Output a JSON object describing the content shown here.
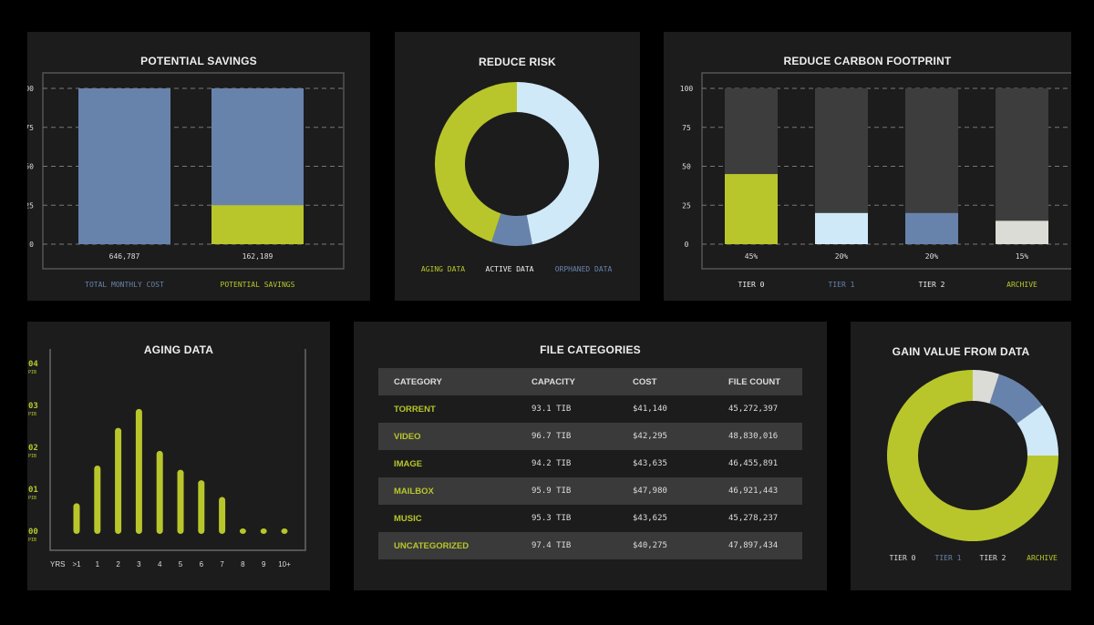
{
  "colors": {
    "green": "#b8c62b",
    "blue": "#6883ab",
    "lightblue": "#cfe9f8",
    "gray": "#3d3d3d",
    "offwhite": "#dcdcd6"
  },
  "chart_data": [
    {
      "type": "bar",
      "title": "POTENTIAL SAVINGS",
      "yticks": [
        "100",
        "75",
        "50",
        "25",
        "0"
      ],
      "ylim": [
        0,
        100
      ],
      "categories": [
        "TOTAL MONTHLY COST",
        "POTENTIAL SAVINGS"
      ],
      "totals": [
        100,
        100
      ],
      "highlight": [
        0,
        25
      ],
      "value_labels": [
        "646,787",
        "162,189"
      ]
    },
    {
      "type": "pie",
      "title": "REDUCE RISK",
      "labels": [
        "AGING DATA",
        "ACTIVE DATA",
        "ORPHANED DATA"
      ],
      "values": [
        45,
        8,
        47
      ]
    },
    {
      "type": "bar",
      "title": "REDUCE CARBON FOOTPRINT",
      "yticks": [
        "100",
        "75",
        "50",
        "25",
        "0"
      ],
      "ylim": [
        0,
        100
      ],
      "categories": [
        "TIER 0",
        "TIER 1",
        "TIER 2",
        "ARCHIVE"
      ],
      "values": [
        45,
        20,
        20,
        15
      ],
      "value_labels": [
        "45%",
        "20%",
        "20%",
        "15%"
      ]
    },
    {
      "type": "bar",
      "title": "AGING DATA",
      "ylim": [
        0,
        4
      ],
      "yticks": [
        "00",
        "01",
        "02",
        "03",
        "04"
      ],
      "yunit": "PIB",
      "xlabel": "YRS",
      "categories": [
        ">1",
        "1",
        "2",
        "3",
        "4",
        "5",
        "6",
        "7",
        "8",
        "9",
        "10+"
      ],
      "values": [
        0.6,
        1.5,
        2.4,
        2.85,
        1.85,
        1.4,
        1.15,
        0.75,
        0,
        0,
        0
      ]
    },
    {
      "type": "table",
      "title": "FILE CATEGORIES",
      "columns": [
        "CATEGORY",
        "CAPACITY",
        "COST",
        "FILE COUNT"
      ],
      "rows": [
        [
          "TORRENT",
          "93.1 TIB",
          "$41,140",
          "45,272,397"
        ],
        [
          "VIDEO",
          "96.7 TIB",
          "$42,295",
          "48,830,016"
        ],
        [
          "IMAGE",
          "94.2 TIB",
          "$43,635",
          "46,455,891"
        ],
        [
          "MAILBOX",
          "95.9 TIB",
          "$47,980",
          "46,921,443"
        ],
        [
          "MUSIC",
          "95.3 TIB",
          "$43,625",
          "45,278,237"
        ],
        [
          "UNCATEGORIZED",
          "97.4 TIB",
          "$40,275",
          "47,897,434"
        ]
      ]
    },
    {
      "type": "pie",
      "title": "GAIN VALUE FROM DATA",
      "labels": [
        "TIER 0",
        "TIER 1",
        "TIER 2",
        "ARCHIVE"
      ],
      "values": [
        5,
        10,
        10,
        75
      ]
    }
  ]
}
